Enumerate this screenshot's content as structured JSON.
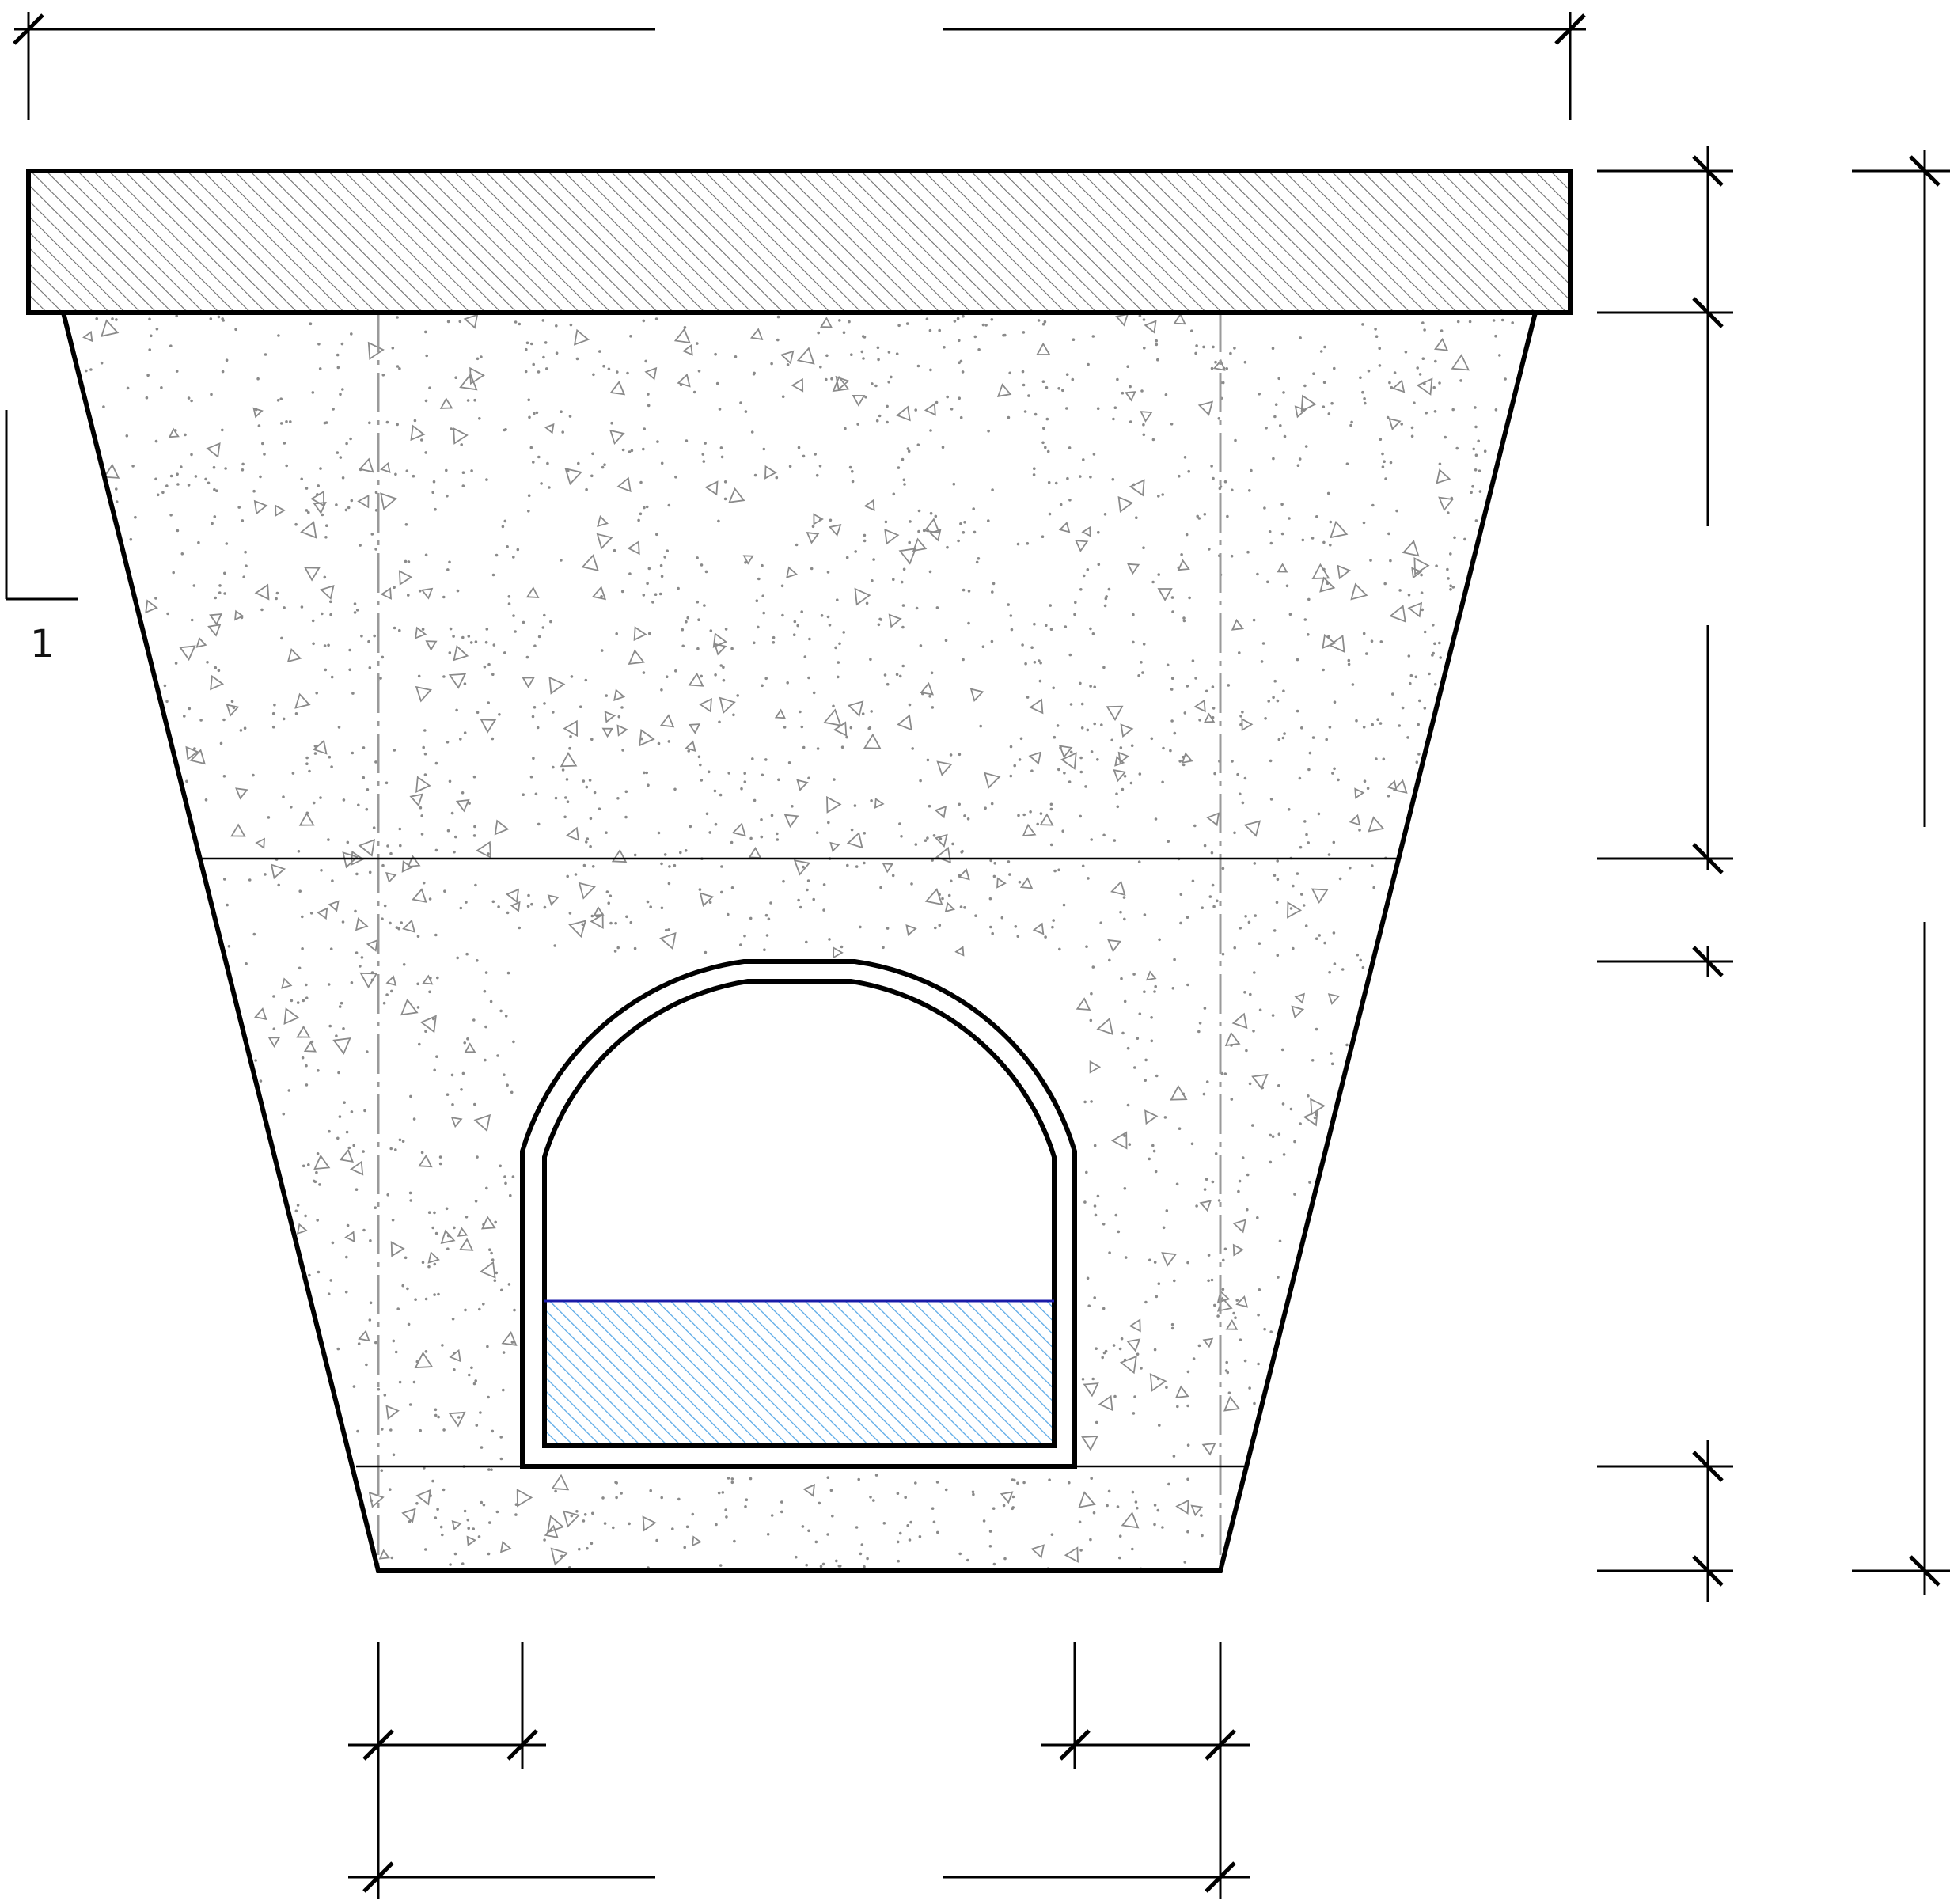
{
  "drawing": {
    "slope_label": "1"
  },
  "colors": {
    "outline": "#000000",
    "concrete_speckle": "#8a8a8a",
    "cap_hatch": "#6e6e6e",
    "water_hatch": "#5aa9e6",
    "water_surface": "#1a1aa8",
    "centerline": "#9a9a9a"
  }
}
